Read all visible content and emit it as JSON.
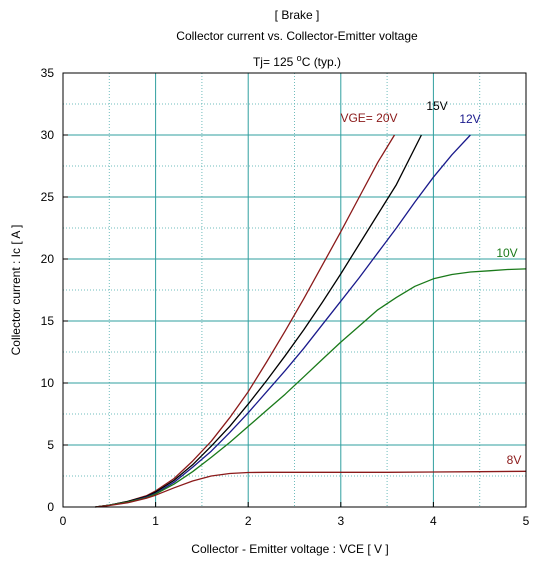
{
  "chart_data": {
    "type": "line",
    "title_lines": [
      "[ Brake ]",
      "Collector current  vs.  Collector-Emitter voltage"
    ],
    "condition": {
      "prefix": "Tj= 125 ",
      "sup": "o",
      "suffix": "C  (typ.)"
    },
    "xlabel": "Collector - Emitter voltage  :  VCE  [ V ]",
    "ylabel": "Collector current  :  Ic  [ A ]",
    "xlim": [
      0,
      5
    ],
    "ylim": [
      0,
      35
    ],
    "x_ticks": [
      0,
      1,
      2,
      3,
      4,
      5
    ],
    "y_ticks": [
      0,
      5,
      10,
      15,
      20,
      25,
      30,
      35
    ],
    "x_minor_step": 0.5,
    "y_minor_step": 2.5,
    "grid": true,
    "series": [
      {
        "name": "VGE= 20V",
        "color": "#8b1a1a",
        "x": [
          0.35,
          0.5,
          0.7,
          0.9,
          1.0,
          1.2,
          1.4,
          1.6,
          1.8,
          2.0,
          2.2,
          2.4,
          2.6,
          2.8,
          3.0,
          3.2,
          3.4,
          3.58
        ],
        "y": [
          0,
          0.15,
          0.45,
          0.9,
          1.3,
          2.3,
          3.7,
          5.3,
          7.2,
          9.3,
          11.7,
          14.2,
          16.8,
          19.5,
          22.2,
          25.0,
          27.8,
          30.0
        ]
      },
      {
        "name": "15V",
        "color": "#000000",
        "x": [
          0.35,
          0.5,
          0.7,
          0.9,
          1.0,
          1.2,
          1.4,
          1.6,
          1.8,
          2.0,
          2.2,
          2.4,
          2.6,
          2.8,
          3.0,
          3.2,
          3.4,
          3.6,
          3.87
        ],
        "y": [
          0,
          0.15,
          0.45,
          0.85,
          1.2,
          2.15,
          3.4,
          4.9,
          6.5,
          8.3,
          10.2,
          12.2,
          14.3,
          16.5,
          18.8,
          21.2,
          23.6,
          26.0,
          30.0
        ]
      },
      {
        "name": "12V",
        "color": "#1a1a8c",
        "x": [
          0.35,
          0.5,
          0.7,
          0.9,
          1.0,
          1.2,
          1.4,
          1.6,
          1.8,
          2.0,
          2.2,
          2.4,
          2.6,
          2.8,
          3.0,
          3.2,
          3.4,
          3.6,
          3.8,
          4.0,
          4.2,
          4.4
        ],
        "y": [
          0,
          0.15,
          0.4,
          0.8,
          1.1,
          2.0,
          3.2,
          4.5,
          6.0,
          7.6,
          9.3,
          11.0,
          12.8,
          14.7,
          16.6,
          18.5,
          20.5,
          22.5,
          24.6,
          26.6,
          28.4,
          30.0
        ]
      },
      {
        "name": "10V",
        "color": "#1a7a1a",
        "x": [
          0.35,
          0.5,
          0.7,
          0.9,
          1.0,
          1.2,
          1.4,
          1.6,
          1.8,
          2.0,
          2.2,
          2.4,
          2.6,
          2.8,
          3.0,
          3.2,
          3.4,
          3.6,
          3.8,
          4.0,
          4.2,
          4.4,
          4.6,
          4.8,
          5.0
        ],
        "y": [
          0,
          0.15,
          0.4,
          0.75,
          1.05,
          1.85,
          2.85,
          4.0,
          5.2,
          6.5,
          7.8,
          9.1,
          10.5,
          11.9,
          13.3,
          14.6,
          15.9,
          16.9,
          17.8,
          18.4,
          18.75,
          18.95,
          19.05,
          19.15,
          19.2
        ]
      },
      {
        "name": "8V",
        "color": "#8b1a1a",
        "x": [
          0.35,
          0.5,
          0.7,
          0.9,
          1.0,
          1.2,
          1.4,
          1.6,
          1.8,
          2.0,
          2.2,
          2.5,
          3.0,
          3.5,
          4.0,
          4.5,
          5.0
        ],
        "y": [
          0,
          0.12,
          0.35,
          0.7,
          0.95,
          1.55,
          2.1,
          2.5,
          2.7,
          2.78,
          2.8,
          2.8,
          2.8,
          2.8,
          2.82,
          2.85,
          2.88
        ]
      }
    ]
  }
}
